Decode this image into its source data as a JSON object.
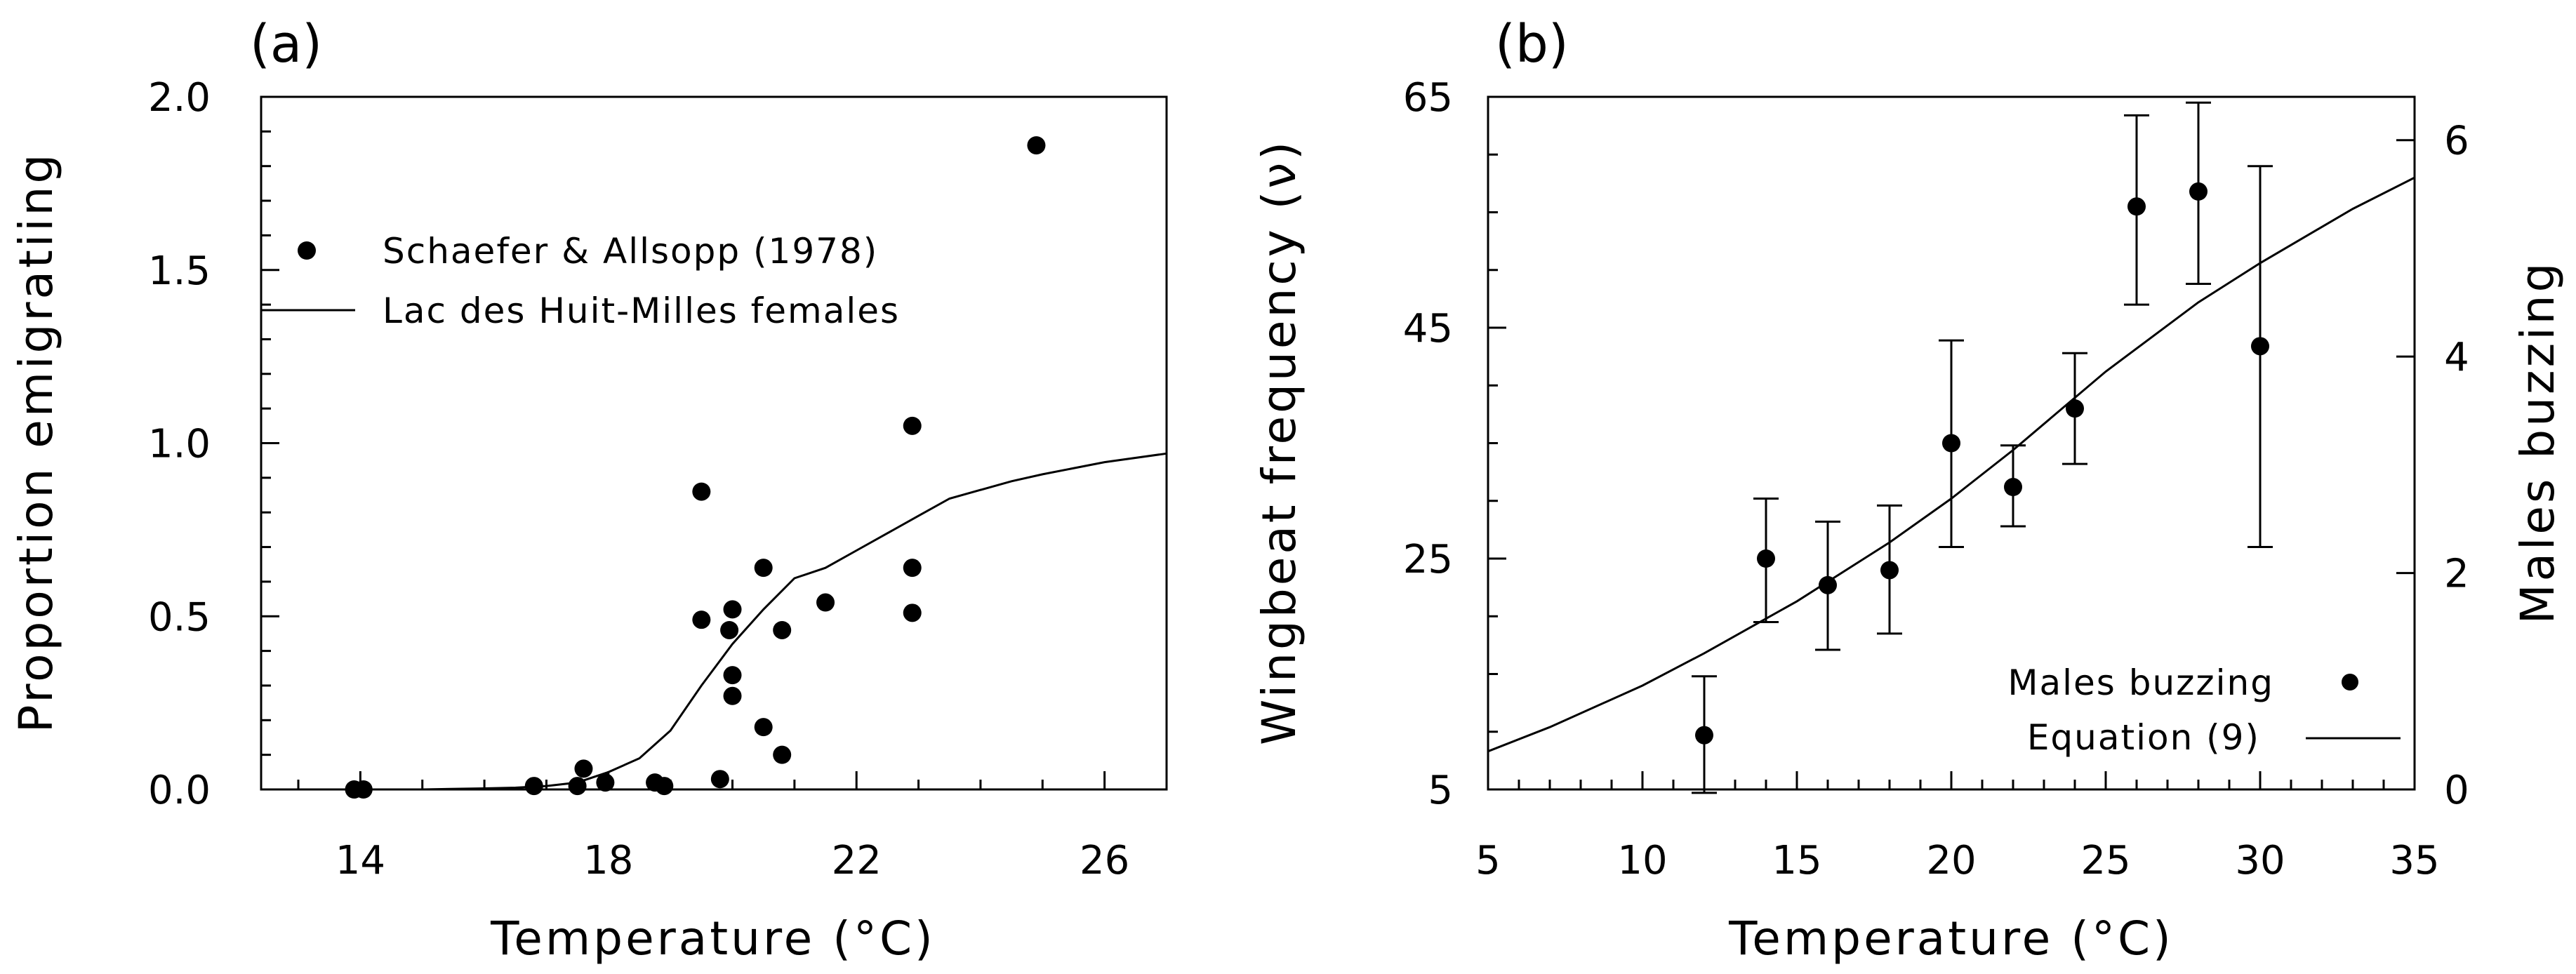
{
  "chart_data": [
    {
      "type": "scatter",
      "panel_label": "(a)",
      "xlabel": "Temperature (°C)",
      "ylabel": "Proportion emigratiing",
      "xlim": [
        12.4,
        27
      ],
      "ylim": [
        0,
        2.0
      ],
      "xticks": [
        14,
        18,
        22,
        26
      ],
      "xtick_labels": [
        "14",
        "18",
        "22",
        "26"
      ],
      "yticks": [
        0.0,
        0.5,
        1.0,
        1.5,
        2.0
      ],
      "ytick_labels": [
        "0.0",
        "0.5",
        "1.0",
        "1.5",
        "2.0"
      ],
      "legend": {
        "position": "upper-left",
        "entries": [
          {
            "label": "Schaefer & Allsopp (1978)",
            "marker": "dot"
          },
          {
            "label": "Lac des Huit-Milles females",
            "marker": "line"
          }
        ]
      },
      "series": [
        {
          "name": "Schaefer & Allsopp (1978)",
          "kind": "points",
          "points": [
            {
              "x": 13.9,
              "y": 0.0
            },
            {
              "x": 14.05,
              "y": 0.0
            },
            {
              "x": 16.8,
              "y": 0.01
            },
            {
              "x": 17.5,
              "y": 0.01
            },
            {
              "x": 17.6,
              "y": 0.06
            },
            {
              "x": 17.95,
              "y": 0.02
            },
            {
              "x": 18.75,
              "y": 0.02
            },
            {
              "x": 18.9,
              "y": 0.01
            },
            {
              "x": 19.5,
              "y": 0.86
            },
            {
              "x": 19.5,
              "y": 0.49
            },
            {
              "x": 19.8,
              "y": 0.03
            },
            {
              "x": 19.95,
              "y": 0.46
            },
            {
              "x": 20.0,
              "y": 0.52
            },
            {
              "x": 20.0,
              "y": 0.33
            },
            {
              "x": 20.0,
              "y": 0.27
            },
            {
              "x": 20.5,
              "y": 0.64
            },
            {
              "x": 20.5,
              "y": 0.18
            },
            {
              "x": 20.8,
              "y": 0.46
            },
            {
              "x": 20.8,
              "y": 0.1
            },
            {
              "x": 21.5,
              "y": 0.54
            },
            {
              "x": 22.9,
              "y": 1.05
            },
            {
              "x": 22.9,
              "y": 0.64
            },
            {
              "x": 22.9,
              "y": 0.51
            },
            {
              "x": 24.9,
              "y": 1.86
            }
          ]
        },
        {
          "name": "Lac des Huit-Milles females",
          "kind": "line",
          "points": [
            {
              "x": 14.0,
              "y": 0.0
            },
            {
              "x": 15.0,
              "y": 0.0
            },
            {
              "x": 16.0,
              "y": 0.003
            },
            {
              "x": 16.5,
              "y": 0.005
            },
            {
              "x": 17.0,
              "y": 0.01
            },
            {
              "x": 17.5,
              "y": 0.02
            },
            {
              "x": 18.0,
              "y": 0.05
            },
            {
              "x": 18.5,
              "y": 0.09
            },
            {
              "x": 19.0,
              "y": 0.17
            },
            {
              "x": 19.5,
              "y": 0.3
            },
            {
              "x": 20.0,
              "y": 0.42
            },
            {
              "x": 20.5,
              "y": 0.52
            },
            {
              "x": 21.0,
              "y": 0.61
            },
            {
              "x": 21.5,
              "y": 0.64
            },
            {
              "x": 22.0,
              "y": 0.69
            },
            {
              "x": 23.0,
              "y": 0.79
            },
            {
              "x": 23.5,
              "y": 0.84
            },
            {
              "x": 24.5,
              "y": 0.89
            },
            {
              "x": 25.0,
              "y": 0.91
            },
            {
              "x": 26.0,
              "y": 0.945
            },
            {
              "x": 27.0,
              "y": 0.97
            }
          ]
        }
      ]
    },
    {
      "type": "scatter",
      "panel_label": "(b)",
      "xlabel": "Temperature (°C)",
      "ylabel": "Wingbeat frequency (ν)",
      "ylabel_right": "Males buzzing",
      "xlim": [
        5,
        35
      ],
      "ylim": [
        5,
        65
      ],
      "ylim_right": [
        0,
        6.4
      ],
      "xticks": [
        5,
        10,
        15,
        20,
        25,
        30,
        35
      ],
      "xtick_labels": [
        "5",
        "10",
        "15",
        "20",
        "25",
        "30",
        "35"
      ],
      "yticks": [
        5,
        25,
        45,
        65
      ],
      "ytick_labels": [
        "5",
        "25",
        "45",
        "65"
      ],
      "yticks_right": [
        0,
        2,
        4,
        6
      ],
      "ytick_labels_right": [
        "0",
        "2",
        "4",
        "6"
      ],
      "legend": {
        "position": "lower-right",
        "entries": [
          {
            "label": "Males buzzing",
            "marker": "dot"
          },
          {
            "label": "Equation (9)",
            "marker": "line"
          }
        ]
      },
      "series": [
        {
          "name": "Males buzzing",
          "kind": "points_with_error",
          "axis": "left",
          "points": [
            {
              "x": 12,
              "y": 9.7,
              "low": 4.7,
              "high": 14.8
            },
            {
              "x": 14,
              "y": 25.0,
              "low": 19.5,
              "high": 30.2
            },
            {
              "x": 16,
              "y": 22.7,
              "low": 17.1,
              "high": 28.2
            },
            {
              "x": 18,
              "y": 24.0,
              "low": 18.5,
              "high": 29.6
            },
            {
              "x": 20,
              "y": 35.0,
              "low": 26.0,
              "high": 43.9
            },
            {
              "x": 22,
              "y": 31.2,
              "low": 27.8,
              "high": 34.8
            },
            {
              "x": 24,
              "y": 38.0,
              "low": 33.2,
              "high": 42.8
            },
            {
              "x": 26,
              "y": 55.5,
              "low": 47.0,
              "high": 63.4
            },
            {
              "x": 28,
              "y": 56.8,
              "low": 48.8,
              "high": 64.5
            },
            {
              "x": 30,
              "y": 43.4,
              "low": 26.0,
              "high": 59.0
            }
          ]
        },
        {
          "name": "Equation (9)",
          "kind": "line",
          "axis": "left",
          "points": [
            {
              "x": 5,
              "y": 8.3
            },
            {
              "x": 7,
              "y": 10.4
            },
            {
              "x": 10,
              "y": 14.0
            },
            {
              "x": 12,
              "y": 16.8
            },
            {
              "x": 15,
              "y": 21.3
            },
            {
              "x": 18,
              "y": 26.4
            },
            {
              "x": 20,
              "y": 30.2
            },
            {
              "x": 22,
              "y": 34.4
            },
            {
              "x": 25,
              "y": 41.2
            },
            {
              "x": 28,
              "y": 47.2
            },
            {
              "x": 30,
              "y": 50.6
            },
            {
              "x": 33,
              "y": 55.3
            },
            {
              "x": 35,
              "y": 58.0
            }
          ]
        }
      ]
    }
  ]
}
